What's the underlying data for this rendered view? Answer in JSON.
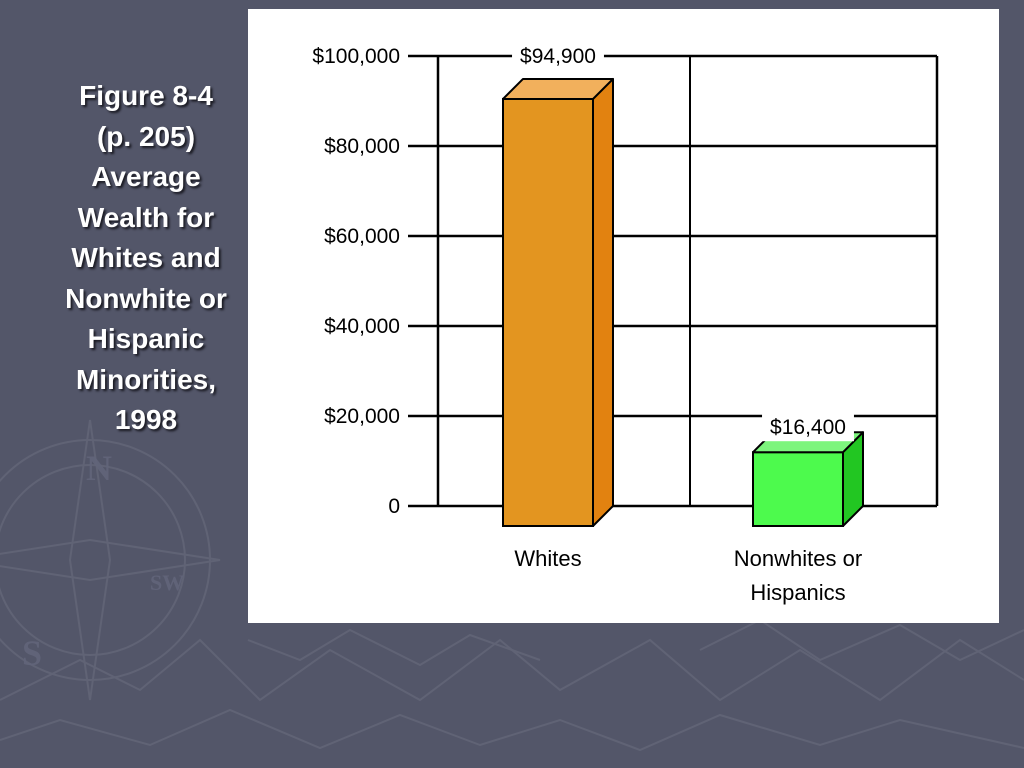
{
  "slide": {
    "title_lines": [
      "Figure 8-4",
      "(p. 205)",
      "Average",
      "Wealth for",
      "Whites and",
      "Nonwhite or",
      "Hispanic",
      "Minorities,",
      "1998"
    ]
  },
  "chart_data": {
    "type": "bar",
    "title": "",
    "xlabel": "",
    "ylabel": "",
    "ylim": [
      0,
      100000
    ],
    "yticks": [
      0,
      20000,
      40000,
      60000,
      80000,
      100000
    ],
    "ytick_labels": [
      "0",
      "$20,000",
      "$40,000",
      "$60,000",
      "$80,000",
      "$100,000"
    ],
    "grid": true,
    "style": "3d",
    "categories": [
      "Whites",
      "Nonwhites or Hispanics"
    ],
    "category_label_lines": [
      [
        "Whites"
      ],
      [
        "Nonwhites or",
        "Hispanics"
      ]
    ],
    "values": [
      94900,
      16400
    ],
    "data_labels": [
      "$94,900",
      "$16,400"
    ],
    "colors": {
      "front": [
        "#e39520",
        "#4dfa4d"
      ],
      "top": [
        "#f2b05c",
        "#7df57d"
      ],
      "side": [
        "#e28210",
        "#22c622"
      ]
    }
  }
}
